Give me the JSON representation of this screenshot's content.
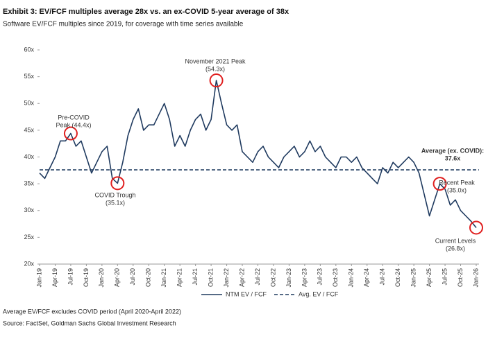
{
  "chart_data": {
    "type": "line",
    "title": "Exhibit 3: EV/FCF multiples average 28x vs. an ex-COVID 5-year average of 38x",
    "subtitle": "Software EV/FCF multiples since 2019, for coverage with time series available",
    "categories": [
      "Jan-19",
      null,
      null,
      "Apr-19",
      null,
      null,
      "Jul-19",
      null,
      null,
      "Oct-19",
      null,
      null,
      "Jan-20",
      null,
      null,
      "Apr-20",
      null,
      null,
      "Jul-20",
      null,
      null,
      "Oct-20",
      null,
      null,
      "Jan-21",
      null,
      null,
      "Apr-21",
      null,
      null,
      "Jul-21",
      null,
      null,
      "Oct-21",
      null,
      null,
      "Jan-22",
      null,
      null,
      "Apr-22",
      null,
      null,
      "Jul-22",
      null,
      null,
      "Oct-22",
      null,
      null,
      "Jan-23",
      null,
      null,
      "Apr-23",
      null,
      null,
      "Jul-23",
      null,
      null,
      "Oct-23",
      null,
      null,
      "Jan-24",
      null,
      null,
      "Apr-24",
      null,
      null,
      "Jul-24",
      null,
      null,
      "Oct-24",
      null,
      null,
      "Jan-25",
      null,
      null,
      "Apr-25",
      null,
      null,
      "Jul-25",
      null,
      null,
      "Oct-25",
      null,
      null,
      "Jan-26"
    ],
    "series": [
      {
        "name": "NTM EV / FCF",
        "color": "#1f3a5f",
        "values": [
          37,
          36,
          38,
          40,
          43,
          43,
          44.4,
          42,
          43,
          40,
          37,
          39,
          41,
          42,
          36,
          35.1,
          39,
          44,
          47,
          49,
          45,
          46,
          46,
          48,
          50,
          47,
          42,
          44,
          42,
          45,
          47,
          48,
          45,
          47,
          54.3,
          50,
          46,
          45,
          46,
          41,
          40,
          39,
          41,
          42,
          40,
          39,
          38,
          40,
          41,
          42,
          40,
          41,
          43,
          41,
          42,
          40,
          39,
          38,
          40,
          40,
          39,
          40,
          38,
          37,
          36,
          35,
          38,
          37,
          39,
          38,
          39,
          40,
          39,
          37,
          33,
          29,
          32,
          35.0,
          34,
          31,
          32,
          30,
          29,
          28,
          26.8
        ]
      }
    ],
    "reference_line": {
      "name": "Avg. EV / FCF",
      "value": 37.6,
      "label": "Average (ex. COVID):",
      "value_label": "37.6x",
      "color": "#1f3a5f"
    },
    "annotations": [
      {
        "lines": [
          "Pre-COVID",
          "Peak (44.4x)"
        ]
      },
      {
        "lines": [
          "COVID Trough",
          "(35.1x)"
        ]
      },
      {
        "lines": [
          "November  2021 Peak",
          "(54.3x)"
        ]
      },
      {
        "lines": [
          "Recent Peak",
          "(35.0x)"
        ]
      },
      {
        "lines": [
          "Current Levels",
          "(26.8x)"
        ]
      }
    ],
    "ylim": [
      20,
      60
    ],
    "yticks": [
      {
        "value": 20,
        "label": "20x"
      },
      {
        "value": 25,
        "label": "25x"
      },
      {
        "value": 30,
        "label": "30x"
      },
      {
        "value": 35,
        "label": "35x"
      },
      {
        "value": 40,
        "label": "40x"
      },
      {
        "value": 45,
        "label": "45x"
      },
      {
        "value": 50,
        "label": "50x"
      },
      {
        "value": 55,
        "label": "55x"
      },
      {
        "value": 60,
        "label": "60x"
      }
    ],
    "grid": false,
    "footnotes": [
      "Average EV/FCF excludes COVID period (April 2020-April 2022)",
      "Source: FactSet, Goldman Sachs Global Investment Research"
    ]
  }
}
